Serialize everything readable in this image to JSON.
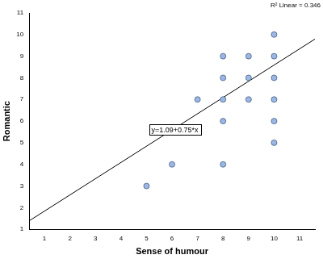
{
  "chart_data": {
    "type": "scatter",
    "x_label": "Sense of humour",
    "y_label": "Romantic",
    "x": [
      5,
      6,
      7,
      8,
      8,
      8,
      8,
      8,
      9,
      9,
      9,
      10,
      10,
      10,
      10,
      10,
      10
    ],
    "values": [
      3,
      4,
      7,
      9,
      8,
      7,
      6,
      4,
      9,
      8,
      7,
      10,
      9,
      8,
      7,
      6,
      5
    ],
    "color": "#9ab7e6",
    "marker": "circle",
    "xlim": [
      0.4,
      11.6
    ],
    "xticks": [
      1,
      2,
      3,
      4,
      5,
      6,
      7,
      8,
      9,
      10,
      11
    ],
    "ylim": [
      1,
      11
    ],
    "yticks": [
      1,
      2,
      3,
      4,
      5,
      6,
      7,
      8,
      9,
      10,
      11
    ],
    "grid": false,
    "fit": {
      "intercept": 1.09,
      "slope": 0.75,
      "label": "y=1.09+0.75*x",
      "color": "#000000"
    },
    "annotation": "R² Linear = 0.346"
  }
}
